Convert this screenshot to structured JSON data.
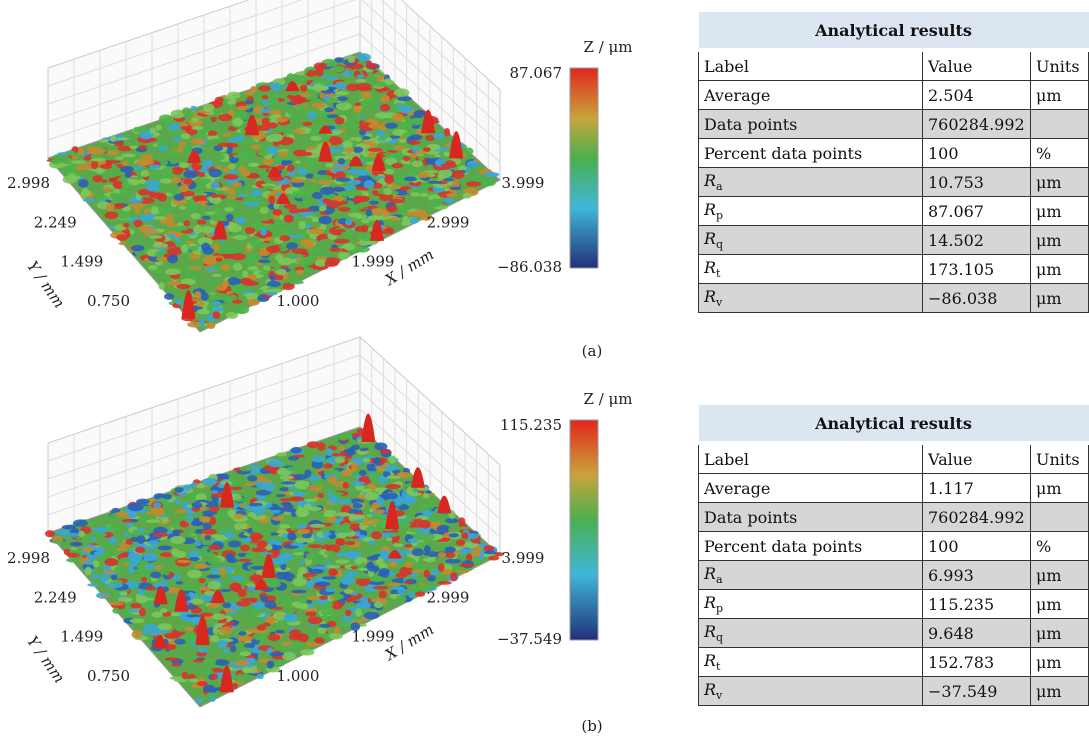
{
  "panels": [
    {
      "label": "(a)",
      "surface": {
        "z_label": "Z / μm",
        "z_max": "87.067",
        "z_min": "−86.038",
        "y_label": "Y / mm",
        "y_ticks": [
          "0.750",
          "1.499",
          "2.249",
          "2.998"
        ],
        "x_label": "X / mm",
        "x_ticks": [
          "1.000",
          "1.999",
          "2.999",
          "3.999"
        ]
      },
      "table": {
        "title": "Analytical results",
        "header": [
          "Label",
          "Value",
          "Units"
        ],
        "rows": [
          [
            {
              "text": "Average"
            },
            "2.504",
            "μm"
          ],
          [
            {
              "text": "Data points"
            },
            "760284.992",
            ""
          ],
          [
            {
              "text": "Percent data points"
            },
            "100",
            "%"
          ],
          [
            {
              "symbol": "R",
              "sub": "a"
            },
            "10.753",
            "μm"
          ],
          [
            {
              "symbol": "R",
              "sub": "p"
            },
            "87.067",
            "μm"
          ],
          [
            {
              "symbol": "R",
              "sub": "q"
            },
            "14.502",
            "μm"
          ],
          [
            {
              "symbol": "R",
              "sub": "t"
            },
            "173.105",
            "μm"
          ],
          [
            {
              "symbol": "R",
              "sub": "v"
            },
            "−86.038",
            "μm"
          ]
        ]
      }
    },
    {
      "label": "(b)",
      "surface": {
        "z_label": "Z / μm",
        "z_max": "115.235",
        "z_min": "−37.549",
        "y_label": "Y / mm",
        "y_ticks": [
          "0.750",
          "1.499",
          "2.249",
          "2.998"
        ],
        "x_label": "X / mm",
        "x_ticks": [
          "1.000",
          "1.999",
          "2.999",
          "3.999"
        ]
      },
      "table": {
        "title": "Analytical results",
        "header": [
          "Label",
          "Value",
          "Units"
        ],
        "rows": [
          [
            {
              "text": "Average"
            },
            "1.117",
            "μm"
          ],
          [
            {
              "text": "Data points"
            },
            "760284.992",
            ""
          ],
          [
            {
              "text": "Percent data points"
            },
            "100",
            "%"
          ],
          [
            {
              "symbol": "R",
              "sub": "a"
            },
            "6.993",
            "μm"
          ],
          [
            {
              "symbol": "R",
              "sub": "p"
            },
            "115.235",
            "μm"
          ],
          [
            {
              "symbol": "R",
              "sub": "q"
            },
            "9.648",
            "μm"
          ],
          [
            {
              "symbol": "R",
              "sub": "t"
            },
            "152.783",
            "μm"
          ],
          [
            {
              "symbol": "R",
              "sub": "v"
            },
            "−37.549",
            "μm"
          ]
        ]
      }
    }
  ]
}
